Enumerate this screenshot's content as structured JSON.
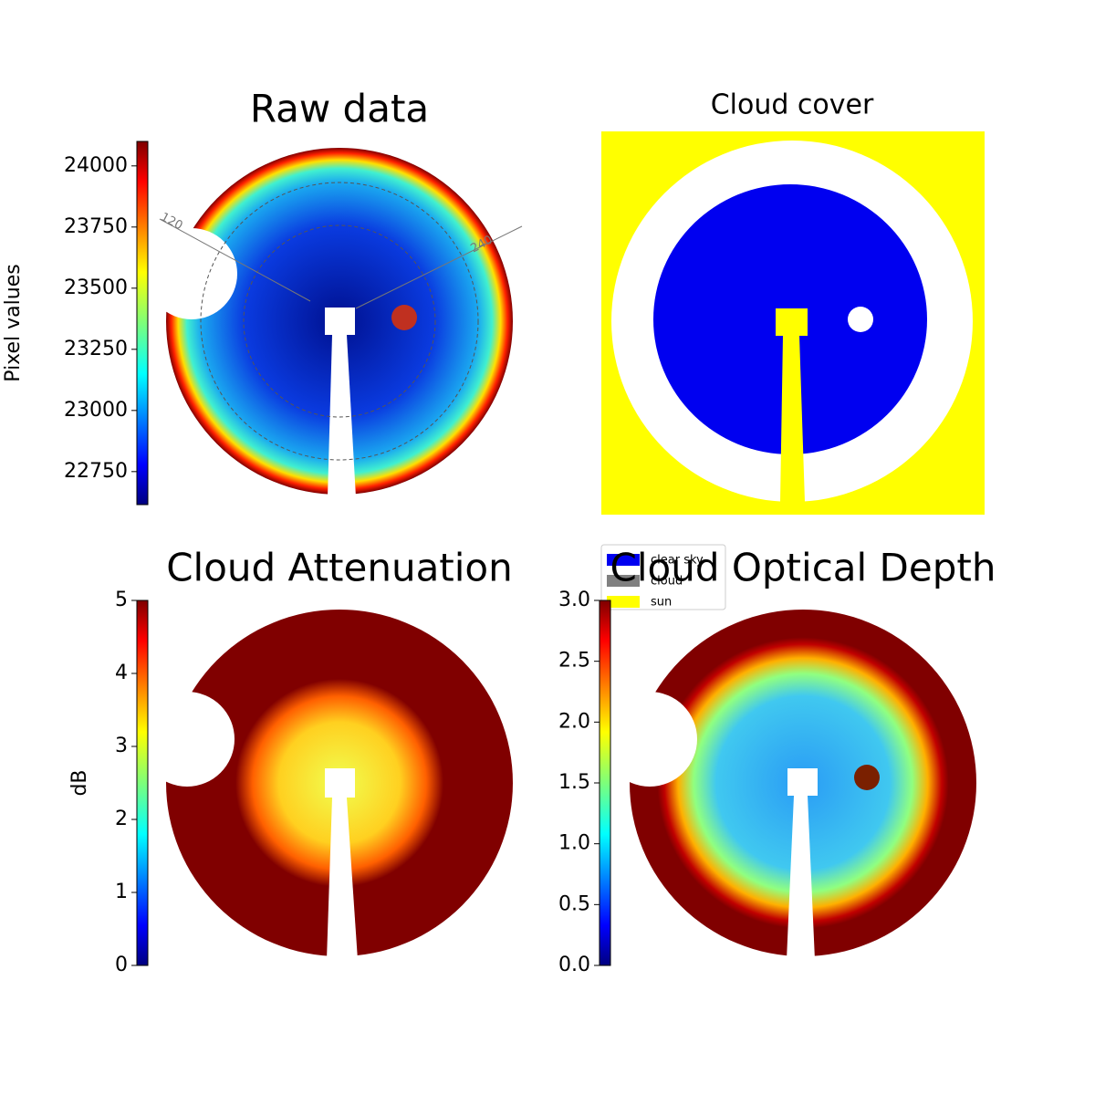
{
  "chart_data": [
    {
      "type": "image",
      "title": "Raw data",
      "colorbar_label": "Pixel values",
      "colormap": "jet",
      "clim": [
        22615,
        24100
      ],
      "cticks": [
        22750,
        23000,
        23250,
        23500,
        23750,
        24000
      ],
      "annotations": [
        "120",
        "240"
      ]
    },
    {
      "type": "image",
      "title": "Cloud cover",
      "legend": [
        {
          "name": "clear sky",
          "color": "#0000f0"
        },
        {
          "name": "cloud",
          "color": "#808080"
        },
        {
          "name": "sun",
          "color": "#ffff00"
        }
      ]
    },
    {
      "type": "image",
      "title": "Cloud Attenuation",
      "colorbar_label": "dB",
      "colormap": "jet",
      "clim": [
        0,
        5
      ],
      "cticks": [
        0,
        1,
        2,
        3,
        4,
        5
      ]
    },
    {
      "type": "image",
      "title": "Cloud Optical Depth",
      "colormap": "jet",
      "clim": [
        0,
        3
      ],
      "cticks": [
        {
          "value": 0,
          "label": "0.0"
        },
        0.5,
        {
          "value": 1,
          "label": "1.0"
        },
        1.5,
        {
          "value": 2,
          "label": "2.0"
        },
        2.5,
        {
          "value": 3,
          "label": "3.0"
        }
      ]
    }
  ]
}
